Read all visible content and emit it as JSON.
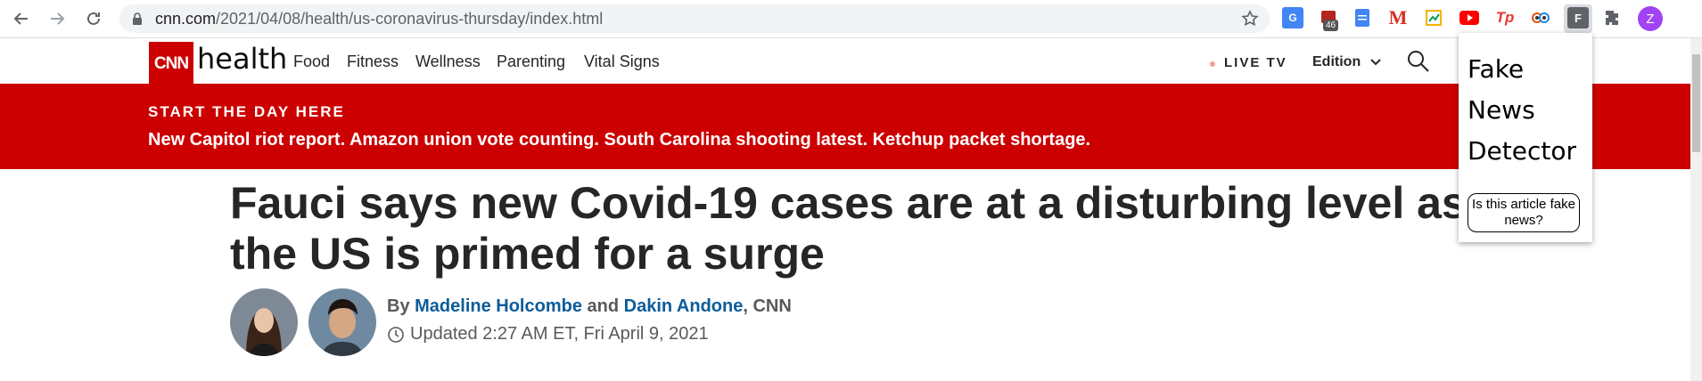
{
  "browser": {
    "url_host": "cnn.com",
    "url_path": "/2021/04/08/health/us-coronavirus-thursday/index.html",
    "ext_badge": "46",
    "ext_gmail_glyph": "M",
    "ext_tp_glyph": "Tp",
    "ext_active_glyph": "F",
    "profile_initial": "Z"
  },
  "cnn": {
    "logo": "CNN",
    "section": "health",
    "nav": [
      "Food",
      "Fitness",
      "Wellness",
      "Parenting",
      "Vital Signs"
    ],
    "live_tv": "LIVE TV",
    "edition": "Edition"
  },
  "banner": {
    "kicker": "START THE DAY HERE",
    "headline": "New Capitol riot report. Amazon union vote counting. South Carolina shooting latest. Ketchup packet shortage."
  },
  "article": {
    "title": "Fauci says new Covid-19 cases are at a disturbing level as the US is primed for a surge",
    "by": "By",
    "author1": "Madeline Holcombe",
    "and": "and",
    "author2": "Dakin Andone",
    "outlet": ", CNN",
    "updated": "Updated 2:27 AM ET, Fri April 9, 2021"
  },
  "popup": {
    "title_line1": "Fake",
    "title_line2": "News",
    "title_line3": "Detector",
    "button": "Is this article fake news?"
  },
  "colors": {
    "cnn_red": "#cc0000",
    "link_blue": "#0c5c99"
  }
}
